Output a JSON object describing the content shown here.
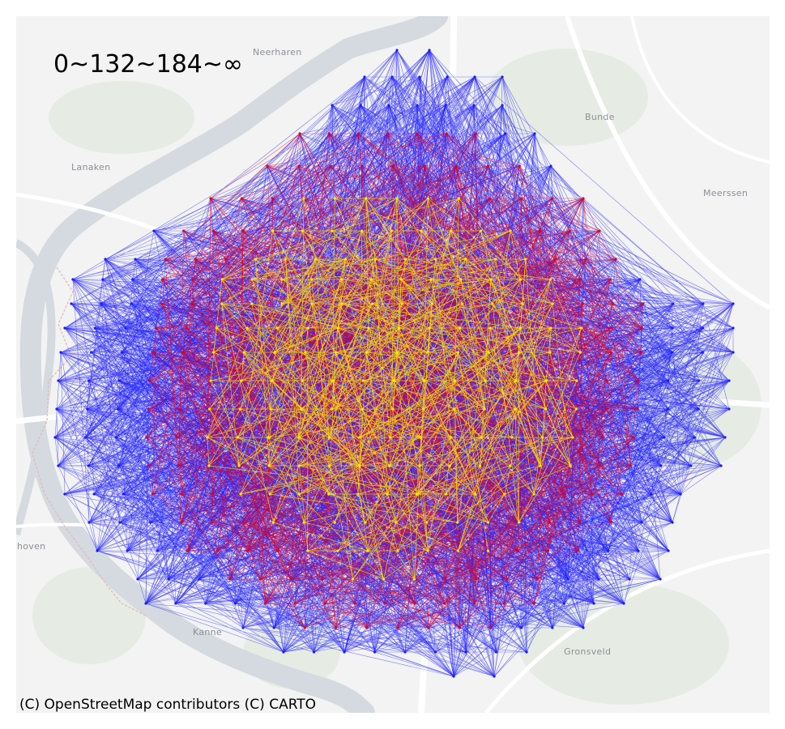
{
  "legend": {
    "text": "0~132~184~∞"
  },
  "attribution": "(C) OpenStreetMap contributors (C) CARTO",
  "places": [
    "Neerharen",
    "Bunde",
    "Lanaken",
    "Meerssen",
    "hoven",
    "Kanne",
    "Gronsveld"
  ],
  "colors": {
    "short_edges": "#ffee00",
    "mid_edges": "#e0001c",
    "long_edges": "#1a1aff",
    "basemap_land": "#f2f3f2",
    "basemap_river": "#d4dadf",
    "basemap_road": "#ffffff",
    "basemap_green": "#e6ece4",
    "border_line": "#e8b8b8"
  },
  "map": {
    "basemap": "CARTO Positron",
    "region": "Maastricht area",
    "layer": "distance-colored connection network",
    "edge_classes": [
      {
        "range": "0~132",
        "color": "#ffee00"
      },
      {
        "range": "132~184",
        "color": "#e0001c"
      },
      {
        "range": "184~∞",
        "color": "#1a1aff"
      }
    ]
  }
}
